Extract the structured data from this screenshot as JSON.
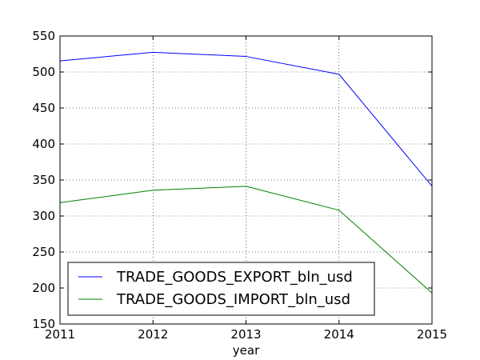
{
  "chart_data": {
    "type": "line",
    "x": [
      2011,
      2012,
      2013,
      2014,
      2015
    ],
    "x_tick_labels": [
      "2011",
      "2012",
      "2013",
      "2014",
      "2015"
    ],
    "y_ticks": [
      150,
      200,
      250,
      300,
      350,
      400,
      450,
      500,
      550
    ],
    "y_tick_labels": [
      "150",
      "200",
      "250",
      "300",
      "350",
      "400",
      "450",
      "500",
      "550"
    ],
    "xlim": [
      2011,
      2015
    ],
    "ylim": [
      150,
      550
    ],
    "xlabel": "year",
    "ylabel": "",
    "title": "",
    "grid": true,
    "legend_position": "lower-left",
    "series": [
      {
        "name": "TRADE_GOODS_EXPORT_bln_usd",
        "color": "#0000ff",
        "values": [
          515.4,
          527.4,
          521.6,
          496.8,
          341.4
        ]
      },
      {
        "name": "TRADE_GOODS_IMPORT_bln_usd",
        "color": "#008000",
        "values": [
          318.6,
          335.8,
          341.3,
          308.0,
          193.0
        ]
      }
    ]
  }
}
